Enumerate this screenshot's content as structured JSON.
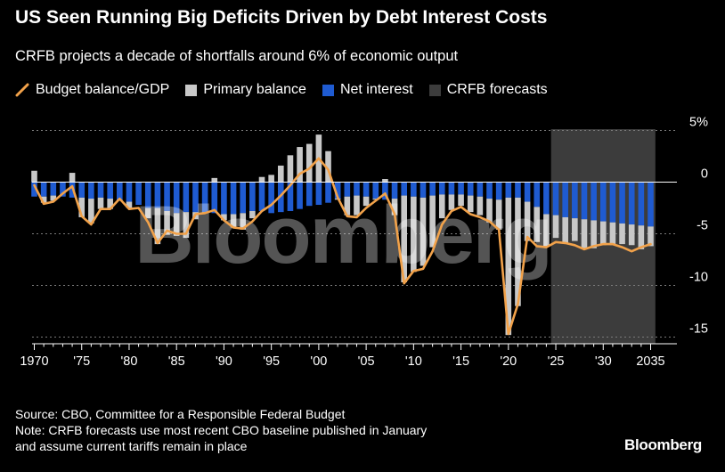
{
  "title": "US Seen Running Big Deficits Driven by Debt Interest Costs",
  "subtitle": "CRFB projects a decade of shortfalls around 6% of economic output",
  "legend": {
    "budget_balance": "Budget balance/GDP",
    "primary_balance": "Primary balance",
    "net_interest": "Net interest",
    "forecasts": "CRFB forecasts"
  },
  "colors": {
    "budget_balance": "#f2a24a",
    "primary_balance": "#c8c8c8",
    "net_interest": "#1f5bd1",
    "forecasts": "#3c3c3c",
    "grid": "#7a7a7a",
    "text": "#ffffff"
  },
  "footer": {
    "source": "Source: CBO, Committee for a Responsible Federal Budget",
    "note_line1": "Note: CRFB forecasts use most recent CBO baseline published in January",
    "note_line2": "and assume current tariffs remain in place"
  },
  "brand": "Bloomberg",
  "watermark": "Bloomberg",
  "chart_data": {
    "type": "bar",
    "x_start": 1970,
    "x_end": 2035,
    "forecast_range": [
      2025,
      2035
    ],
    "xticks": [
      {
        "year": 1970,
        "label": "1970"
      },
      {
        "year": 1975,
        "label": "'75"
      },
      {
        "year": 1980,
        "label": "'80"
      },
      {
        "year": 1985,
        "label": "'85"
      },
      {
        "year": 1990,
        "label": "'90"
      },
      {
        "year": 1995,
        "label": "'95"
      },
      {
        "year": 2000,
        "label": "'00"
      },
      {
        "year": 2005,
        "label": "'05"
      },
      {
        "year": 2010,
        "label": "'10"
      },
      {
        "year": 2015,
        "label": "'15"
      },
      {
        "year": 2020,
        "label": "'20"
      },
      {
        "year": 2025,
        "label": "'25"
      },
      {
        "year": 2030,
        "label": "'30"
      },
      {
        "year": 2035,
        "label": "2035"
      }
    ],
    "yticks": [
      {
        "value": 5,
        "label": "5%"
      },
      {
        "value": 0,
        "label": "0"
      },
      {
        "value": -5,
        "label": "-5"
      },
      {
        "value": -10,
        "label": "-10"
      },
      {
        "value": -15,
        "label": "-15"
      }
    ],
    "ylim": [
      -16.5,
      5
    ],
    "series": [
      {
        "name": "Primary balance",
        "kind": "bar",
        "values": [
          1.1,
          -0.6,
          -0.5,
          0.0,
          0.9,
          -1.9,
          -2.4,
          -1.1,
          -1.0,
          -0.1,
          -0.6,
          0.0,
          -1.0,
          -3.5,
          -2.3,
          -2.2,
          -2.5,
          -0.7,
          -0.1,
          0.4,
          -0.6,
          -1.3,
          -1.6,
          -0.7,
          0.5,
          0.7,
          1.6,
          2.6,
          3.4,
          3.7,
          4.6,
          3.0,
          -0.1,
          -1.8,
          -1.9,
          -0.9,
          -0.1,
          0.3,
          -1.6,
          -8.4,
          -7.3,
          -6.6,
          -5.0,
          -2.3,
          -1.5,
          -1.1,
          -1.6,
          -1.8,
          -2.3,
          -2.9,
          -13.3,
          -10.5,
          -3.8,
          -3.4,
          -3.1,
          -2.2,
          -2.5,
          -2.2,
          -2.8,
          -2.7,
          -2.3,
          -2.2,
          -2.0,
          -2.0,
          -2.3,
          -1.9
        ]
      },
      {
        "name": "Net interest",
        "kind": "bar",
        "values": [
          -1.4,
          -1.4,
          -1.3,
          -1.4,
          -1.5,
          -1.5,
          -1.6,
          -1.5,
          -1.6,
          -1.7,
          -1.9,
          -2.2,
          -2.5,
          -2.5,
          -2.8,
          -3.0,
          -2.9,
          -2.9,
          -2.9,
          -3.0,
          -3.1,
          -3.1,
          -3.0,
          -2.8,
          -2.8,
          -3.0,
          -2.9,
          -2.8,
          -2.6,
          -2.3,
          -2.2,
          -2.0,
          -1.6,
          -1.4,
          -1.3,
          -1.4,
          -1.6,
          -1.7,
          -1.6,
          -1.3,
          -1.4,
          -1.5,
          -1.3,
          -1.2,
          -1.2,
          -1.2,
          -1.3,
          -1.4,
          -1.6,
          -1.7,
          -1.5,
          -1.5,
          -1.9,
          -2.4,
          -3.1,
          -3.2,
          -3.4,
          -3.5,
          -3.6,
          -3.7,
          -3.8,
          -3.9,
          -4.0,
          -4.1,
          -4.2,
          -4.3
        ]
      },
      {
        "name": "Budget balance/GDP",
        "kind": "line",
        "values": [
          -0.3,
          -2.1,
          -1.9,
          -1.1,
          -0.4,
          -3.3,
          -4.1,
          -2.6,
          -2.6,
          -1.6,
          -2.6,
          -2.5,
          -3.9,
          -5.9,
          -4.7,
          -5.0,
          -5.0,
          -3.1,
          -3.0,
          -2.7,
          -3.7,
          -4.4,
          -4.5,
          -3.8,
          -2.8,
          -2.2,
          -1.3,
          -0.3,
          0.8,
          1.3,
          2.3,
          1.2,
          -1.5,
          -3.3,
          -3.4,
          -2.5,
          -1.8,
          -1.1,
          -3.1,
          -9.8,
          -8.6,
          -8.4,
          -6.7,
          -4.1,
          -2.8,
          -2.4,
          -3.1,
          -3.4,
          -3.8,
          -4.6,
          -14.7,
          -11.8,
          -5.3,
          -6.2,
          -6.3,
          -5.8,
          -5.9,
          -6.1,
          -6.5,
          -6.2,
          -6.0,
          -6.0,
          -6.3,
          -6.7,
          -6.3,
          -6.0
        ]
      }
    ]
  }
}
